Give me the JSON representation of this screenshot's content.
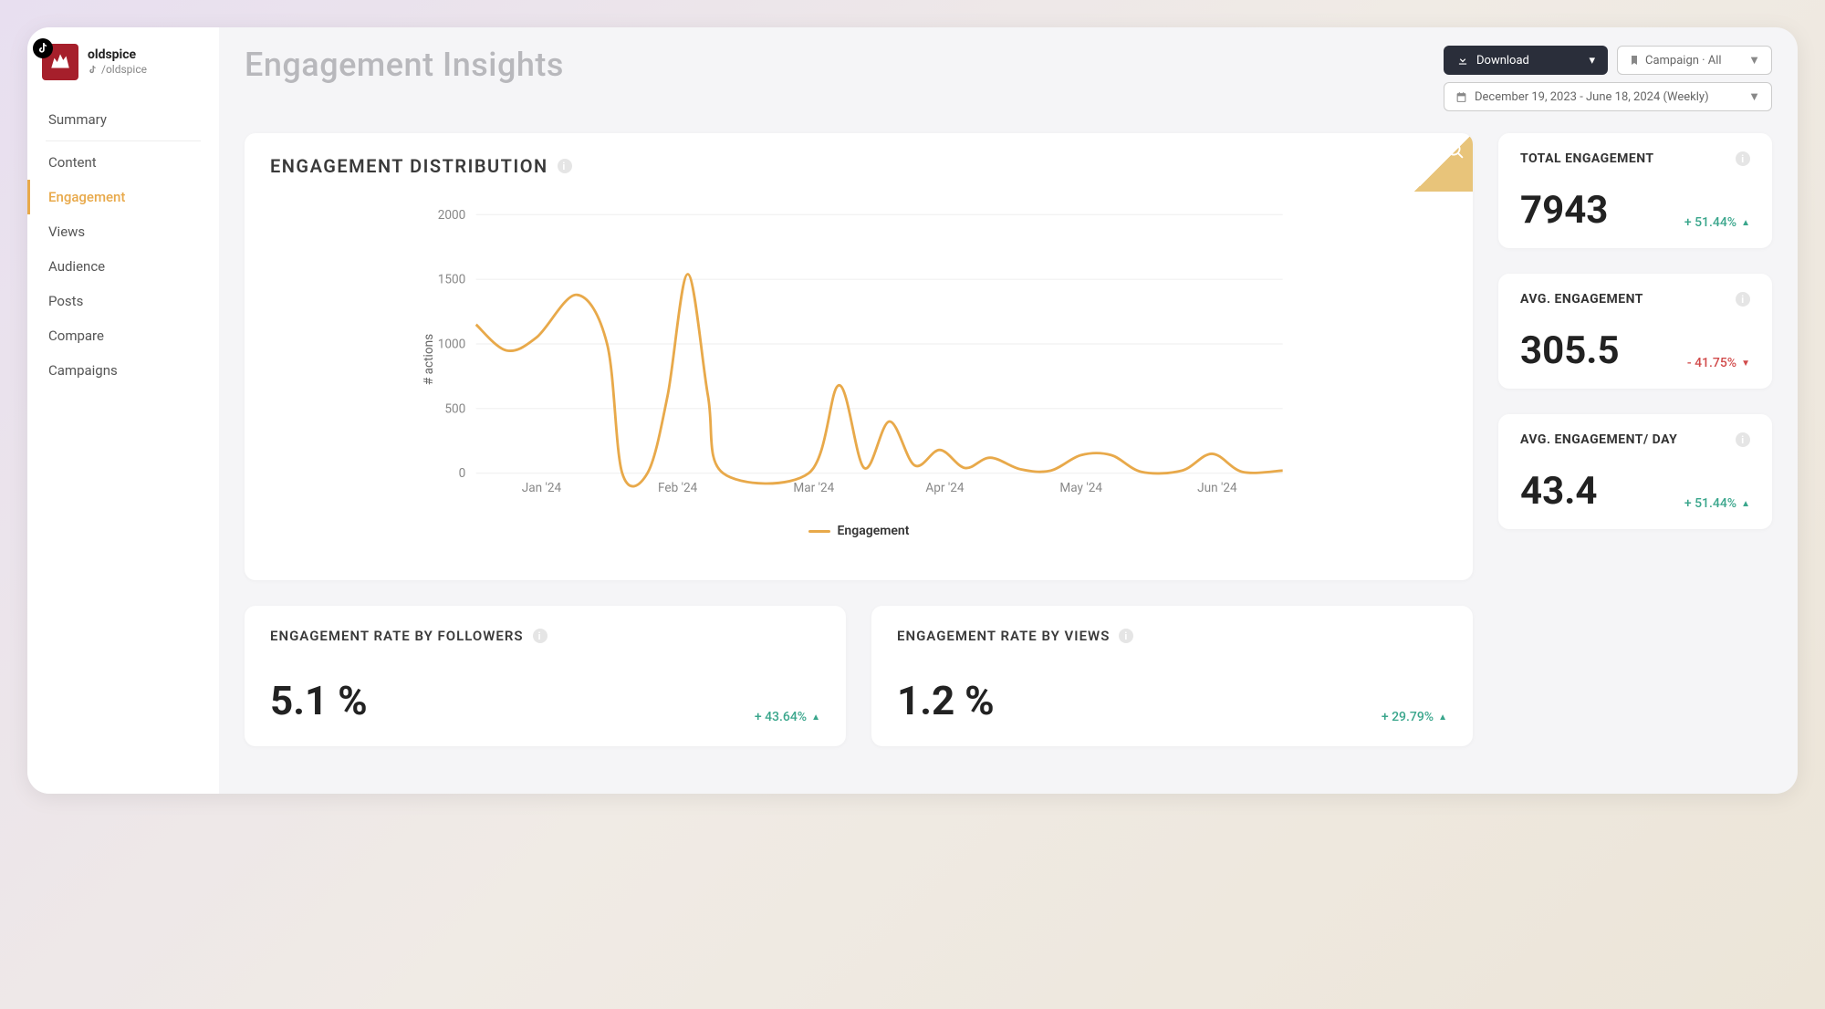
{
  "brand": {
    "name": "oldspice",
    "handle": "/oldspice"
  },
  "sidebar": {
    "items": [
      {
        "label": "Summary"
      },
      {
        "label": "Content"
      },
      {
        "label": "Engagement",
        "active": true
      },
      {
        "label": "Views"
      },
      {
        "label": "Audience"
      },
      {
        "label": "Posts"
      },
      {
        "label": "Compare"
      },
      {
        "label": "Campaigns"
      }
    ]
  },
  "page": {
    "title": "Engagement Insights"
  },
  "controls": {
    "download_label": "Download",
    "campaign_label": "Campaign · All",
    "date_label": "December 19, 2023 - June 18, 2024 (Weekly)"
  },
  "chart": {
    "title": "ENGAGEMENT DISTRIBUTION",
    "type": "line",
    "legend_label": "Engagement",
    "yaxis_label": "# actions",
    "ylim": [
      0,
      2000
    ],
    "ytick_step": 500,
    "yticks": [
      0,
      500,
      1000,
      1500,
      2000
    ],
    "line_color": "#e8a94a",
    "line_width": 2.5,
    "grid_color": "#f0f0f0",
    "background_color": "#ffffff",
    "xticks": [
      "Jan '24",
      "Feb '24",
      "Mar '24",
      "Apr '24",
      "May '24",
      "Jun '24"
    ],
    "series": [
      {
        "x": 0.0,
        "y": 1150
      },
      {
        "x": 0.06,
        "y": 950
      },
      {
        "x": 0.12,
        "y": 1050
      },
      {
        "x": 0.2,
        "y": 1380
      },
      {
        "x": 0.26,
        "y": 1000
      },
      {
        "x": 0.29,
        "y": 0
      },
      {
        "x": 0.34,
        "y": 0
      },
      {
        "x": 0.38,
        "y": 600
      },
      {
        "x": 0.42,
        "y": 1540
      },
      {
        "x": 0.46,
        "y": 600
      },
      {
        "x": 0.49,
        "y": 0
      },
      {
        "x": 0.66,
        "y": 0
      },
      {
        "x": 0.72,
        "y": 680
      },
      {
        "x": 0.77,
        "y": 40
      },
      {
        "x": 0.82,
        "y": 400
      },
      {
        "x": 0.87,
        "y": 60
      },
      {
        "x": 0.92,
        "y": 180
      },
      {
        "x": 0.97,
        "y": 40
      },
      {
        "x": 1.02,
        "y": 120
      },
      {
        "x": 1.08,
        "y": 30
      },
      {
        "x": 1.14,
        "y": 20
      },
      {
        "x": 1.2,
        "y": 140
      },
      {
        "x": 1.26,
        "y": 140
      },
      {
        "x": 1.32,
        "y": 10
      },
      {
        "x": 1.4,
        "y": 20
      },
      {
        "x": 1.46,
        "y": 150
      },
      {
        "x": 1.52,
        "y": 10
      },
      {
        "x": 1.6,
        "y": 20
      }
    ]
  },
  "stats": {
    "total": {
      "title": "TOTAL ENGAGEMENT",
      "value": "7943",
      "delta": "+ 51.44%",
      "dir": "up"
    },
    "avg": {
      "title": "AVG. ENGAGEMENT",
      "value": "305.5",
      "delta": "- 41.75%",
      "dir": "down"
    },
    "avg_day": {
      "title": "AVG. ENGAGEMENT/ DAY",
      "value": "43.4",
      "delta": "+ 51.44%",
      "dir": "up"
    }
  },
  "rates": {
    "followers": {
      "title": "ENGAGEMENT RATE BY FOLLOWERS",
      "value": "5.1 %",
      "delta": "+ 43.64%",
      "dir": "up"
    },
    "views": {
      "title": "ENGAGEMENT RATE BY VIEWS",
      "value": "1.2 %",
      "delta": "+ 29.79%",
      "dir": "up"
    }
  },
  "colors": {
    "accent": "#e8a94a",
    "positive": "#3aa68c",
    "negative": "#d14b4b",
    "brand_red": "#a61f2b"
  }
}
